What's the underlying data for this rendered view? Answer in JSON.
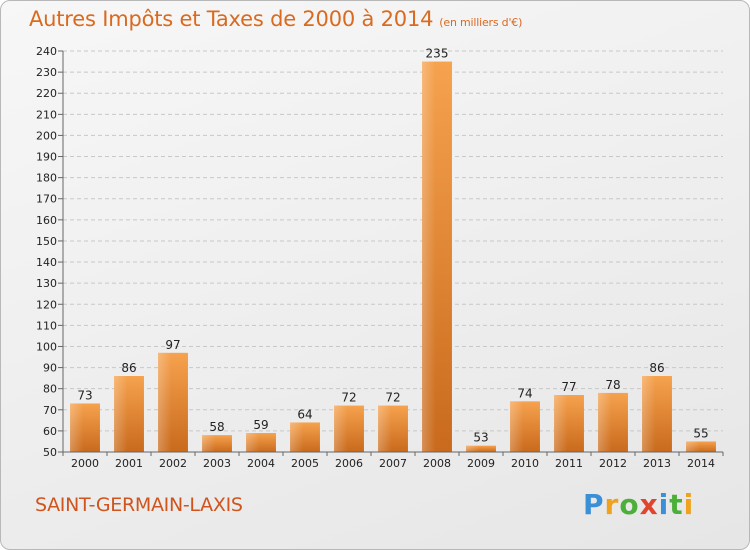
{
  "header": {
    "title": "Autres Impôts et Taxes de 2000 à 2014",
    "unit": "(en milliers d'€)"
  },
  "footer": {
    "commune": "SAINT-GERMAIN-LAXIS",
    "logo": "Proxiti"
  },
  "colors": {
    "title": "#d96a1f",
    "bar_light": "#f6a24e",
    "bar_dark": "#c96a1c",
    "commune": "#d0541c"
  },
  "chart_data": {
    "type": "bar",
    "title": "Autres Impôts et Taxes de 2000 à 2014",
    "subtitle": "(en milliers d'€)",
    "categories": [
      "2000",
      "2001",
      "2002",
      "2003",
      "2004",
      "2005",
      "2006",
      "2007",
      "2008",
      "2009",
      "2010",
      "2011",
      "2012",
      "2013",
      "2014"
    ],
    "values": [
      73,
      86,
      97,
      58,
      59,
      64,
      72,
      72,
      235,
      53,
      74,
      77,
      78,
      86,
      55
    ],
    "ylim": [
      50,
      240
    ],
    "yticks": [
      50,
      60,
      70,
      80,
      90,
      100,
      110,
      120,
      130,
      140,
      150,
      160,
      170,
      180,
      190,
      200,
      210,
      220,
      230,
      240
    ],
    "grid": true,
    "xlabel": "",
    "ylabel": ""
  }
}
